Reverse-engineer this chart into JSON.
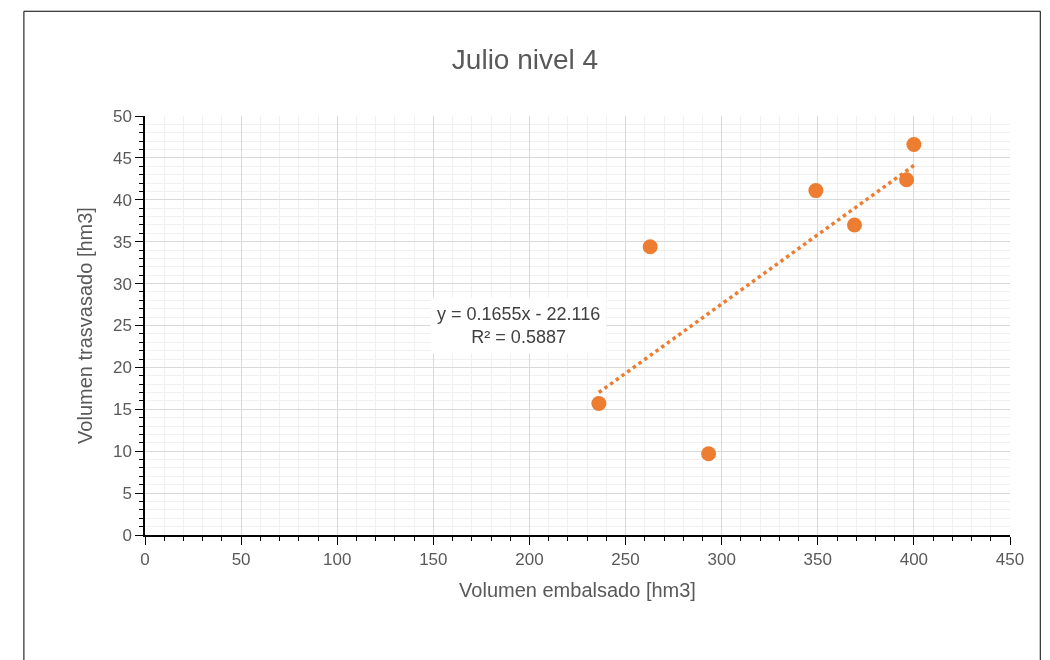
{
  "chart_data": {
    "type": "scatter",
    "title": "Julio nivel 4",
    "xlabel": "Volumen embalsado [hm3]",
    "ylabel": "Volumen trasvasado [hm3]",
    "xlim": [
      0,
      450
    ],
    "xticks": [
      0,
      50,
      100,
      150,
      200,
      250,
      300,
      350,
      400,
      450
    ],
    "ylim": [
      0,
      50
    ],
    "yticks": [
      0,
      5,
      10,
      15,
      20,
      25,
      30,
      35,
      40,
      45,
      50
    ],
    "grid": true,
    "marker": "circle",
    "series": [
      {
        "color": "#ed7d31",
        "x": [
          236.1,
          262.8,
          293.2,
          349,
          369.1,
          396.2,
          400
        ],
        "values": [
          15.7,
          34.4,
          9.7,
          41.1,
          37.0,
          42.4,
          46.6
        ]
      },
      {
        "type": "line",
        "color": "#ed7d31",
        "line_style": "dotted",
        "marker": "none",
        "x": [
          236.1,
          400
        ],
        "values": [
          17.0,
          44.1
        ]
      }
    ],
    "annotations": [
      "y = 0.1655x - 22.116\nR² = 0.5887"
    ]
  }
}
